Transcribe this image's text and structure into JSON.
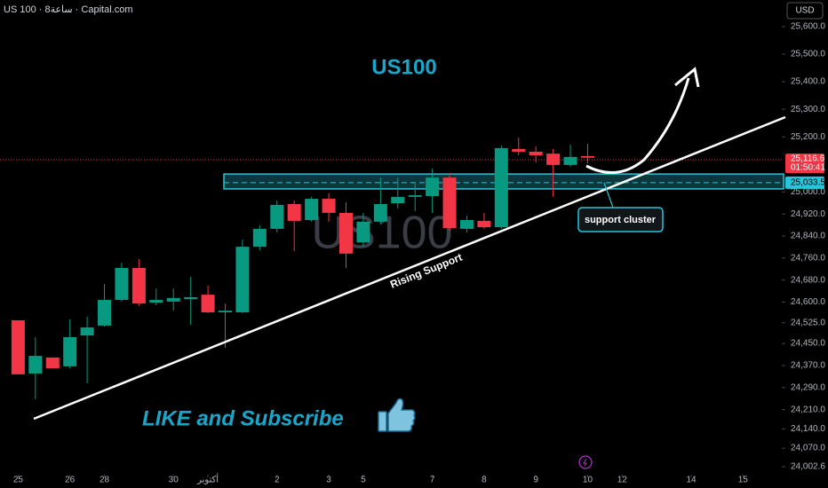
{
  "chart_data": {
    "type": "candlestick",
    "header": "US 100 · 8ساعة · Capital.com",
    "currency": "USD",
    "title": "US100",
    "watermark": "US100",
    "support_line_label": "Rising Support",
    "zone_label": "support cluster",
    "footer": "LIKE and Subscribe",
    "up_color": "#089981",
    "down_color": "#f23645",
    "x": [
      1,
      2,
      3,
      4,
      5,
      6,
      7,
      8,
      9,
      10,
      11,
      12,
      13,
      14,
      15,
      16,
      17,
      18,
      19,
      20,
      21,
      22,
      23,
      24,
      25,
      26,
      27,
      28,
      29,
      30,
      31,
      32,
      33,
      34
    ],
    "open": [
      24534,
      24341,
      24399,
      24367,
      24479,
      24515,
      24608,
      24724,
      24598,
      24602,
      24611,
      24627,
      24563,
      24563,
      24801,
      24866,
      24956,
      24898,
      24975,
      24924,
      24817,
      24892,
      24959,
      24982,
      24985,
      25052,
      24866,
      24895,
      24872,
      25156,
      25146,
      25139,
      25098,
      25130
    ],
    "high": [
      24534,
      24473,
      24399,
      24537,
      24547,
      24666,
      24743,
      24756,
      24650,
      24650,
      24692,
      24660,
      24595,
      24827,
      24879,
      24969,
      24969,
      24982,
      24995,
      24962,
      24924,
      25052,
      25052,
      25033,
      25085,
      25069,
      24914,
      24924,
      25168,
      25197,
      25165,
      25156,
      25172,
      25175
    ],
    "low": [
      24338,
      24247,
      24360,
      24360,
      24305,
      24511,
      24602,
      24586,
      24589,
      24569,
      24518,
      24560,
      24434,
      24560,
      24788,
      24853,
      24785,
      24892,
      24892,
      24724,
      24801,
      24885,
      24940,
      24930,
      24924,
      24859,
      24853,
      24866,
      24866,
      25133,
      25107,
      24982,
      25091,
      25104
    ],
    "close": [
      24338,
      24405,
      24360,
      24473,
      24508,
      24608,
      24724,
      24595,
      24608,
      24615,
      24618,
      24563,
      24569,
      24801,
      24866,
      24953,
      24895,
      24975,
      24924,
      24776,
      24892,
      24956,
      24982,
      24988,
      25052,
      24869,
      24898,
      24872,
      25159,
      25146,
      25133,
      25098,
      25127,
      25124
    ],
    "xlim": [
      -0.05,
      45.25
    ],
    "ylim": [
      23973.7,
      25696.6
    ],
    "xticks": [
      {
        "value": 1,
        "label": "25"
      },
      {
        "value": 4,
        "label": "26"
      },
      {
        "value": 6,
        "label": "28"
      },
      {
        "value": 10,
        "label": "30"
      },
      {
        "value": 12,
        "label": "أكتوبر"
      },
      {
        "value": 16,
        "label": "2"
      },
      {
        "value": 19,
        "label": "3"
      },
      {
        "value": 21,
        "label": "5"
      },
      {
        "value": 25,
        "label": "7"
      },
      {
        "value": 28,
        "label": "8"
      },
      {
        "value": 31,
        "label": "9"
      },
      {
        "value": 34,
        "label": "10"
      },
      {
        "value": 36,
        "label": "12"
      },
      {
        "value": 40,
        "label": "14"
      },
      {
        "value": 43,
        "label": "15"
      }
    ],
    "yticks": [
      {
        "value": 25600,
        "label": "25,600.0"
      },
      {
        "value": 25500,
        "label": "25,500.0"
      },
      {
        "value": 25400,
        "label": "25,400.0"
      },
      {
        "value": 25300,
        "label": "25,300.0"
      },
      {
        "value": 25200,
        "label": "25,200.0"
      },
      {
        "value": 25000,
        "label": "25,000.0"
      },
      {
        "value": 24920,
        "label": "24,920.0"
      },
      {
        "value": 24840,
        "label": "24,840.0"
      },
      {
        "value": 24760,
        "label": "24,760.0"
      },
      {
        "value": 24680,
        "label": "24,680.0"
      },
      {
        "value": 24600,
        "label": "24,600.0"
      },
      {
        "value": 24525,
        "label": "24,525.0"
      },
      {
        "value": 24450,
        "label": "24,450.0"
      },
      {
        "value": 24370,
        "label": "24,370.0"
      },
      {
        "value": 24290,
        "label": "24,290.0"
      },
      {
        "value": 24210,
        "label": "24,210.0"
      },
      {
        "value": 24140,
        "label": "24,140.0"
      },
      {
        "value": 24070,
        "label": "24,070.0"
      },
      {
        "value": 24002.6,
        "label": "24,002.6"
      }
    ],
    "last_price": {
      "value": 25116.6,
      "label": "25,116.6"
    },
    "countdown": "01:50:41",
    "zone": {
      "top": 25065,
      "bottom": 25011,
      "mid": {
        "value": 25033.5,
        "label": "25,033.5"
      }
    }
  }
}
